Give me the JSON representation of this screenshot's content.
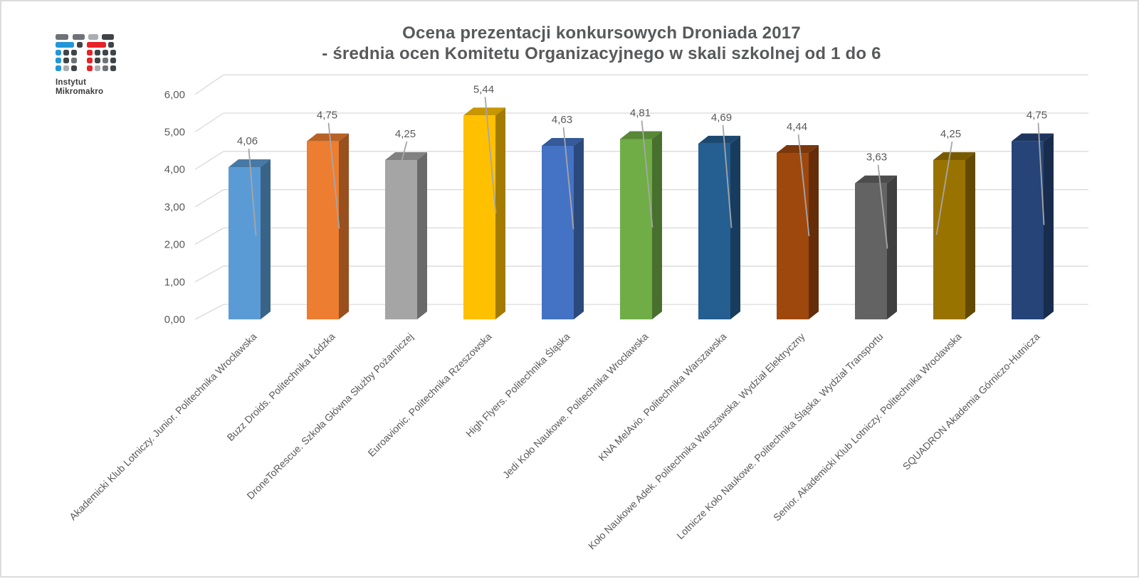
{
  "logo": {
    "line1": "Instytut",
    "line2": "Mikromakro",
    "colors": {
      "blue": "#2396d8",
      "red": "#e62328",
      "dark": "#3f4448",
      "mid": "#6e7377",
      "light": "#a9adb2"
    }
  },
  "title": {
    "line1": "Ocena prezentacji konkursowych Droniada 2017",
    "line2": "- średnia ocen Komitetu Organizacyjnego w skali szkolnej od 1 do 6"
  },
  "chart_data": {
    "type": "bar",
    "style": "3d-column",
    "title": "Ocena prezentacji konkursowych Droniada 2017 - średnia ocen Komitetu Organizacyjnego w skali szkolnej od 1 do 6",
    "categories": [
      "Akademicki Klub Lotniczy. Junior. Politechnika Wrocławska",
      "Buzz Droids. Politechnika Łódzka",
      "DroneToRescue. Szkoła Główna Służby Pożarniczej",
      "Euroavionic. Politechnika Rzeszowska",
      "High Flyers. Politechnika Śląska",
      "Jedi Koło Naukowe. Politechnika Wrocławska",
      "KNA MelAvio. Politechnika Warszawska",
      "Koło Naukowe Adek. Politechnika Warszawska. Wydział Elektryczny",
      "Lotnicze Koło Naukowe. Politechnika Śląska. Wydział Transportu",
      "Senior. Akademicki Klub Lotniczy. Politechnika Wrocławska",
      "SQUADRON Akademia Górniczo-Hutnicza"
    ],
    "values": [
      4.06,
      4.75,
      4.25,
      5.44,
      4.63,
      4.81,
      4.69,
      4.44,
      3.63,
      4.25,
      4.75
    ],
    "data_labels": [
      "4,06",
      "4,75",
      "4,25",
      "5,44",
      "4,63",
      "4,81",
      "4,69",
      "4,44",
      "3,63",
      "4,25",
      "4,75"
    ],
    "bar_colors": [
      "#5B9BD5",
      "#ED7D31",
      "#A5A5A5",
      "#FFC000",
      "#4472C4",
      "#70AD47",
      "#255E91",
      "#9E480E",
      "#636363",
      "#997300",
      "#264478"
    ],
    "ylim": [
      0,
      6
    ],
    "ytick_step": 1,
    "ytick_labels": [
      "0,00",
      "1,00",
      "2,00",
      "3,00",
      "4,00",
      "5,00",
      "6,00"
    ],
    "decimal_separator": ",",
    "grid": true,
    "legend": false,
    "colors": {
      "gridline": "#d9d9d9",
      "leader_line": "#a6a6a6",
      "axis_text": "#595959",
      "label_text": "#595959",
      "title_text": "#58595b"
    }
  }
}
